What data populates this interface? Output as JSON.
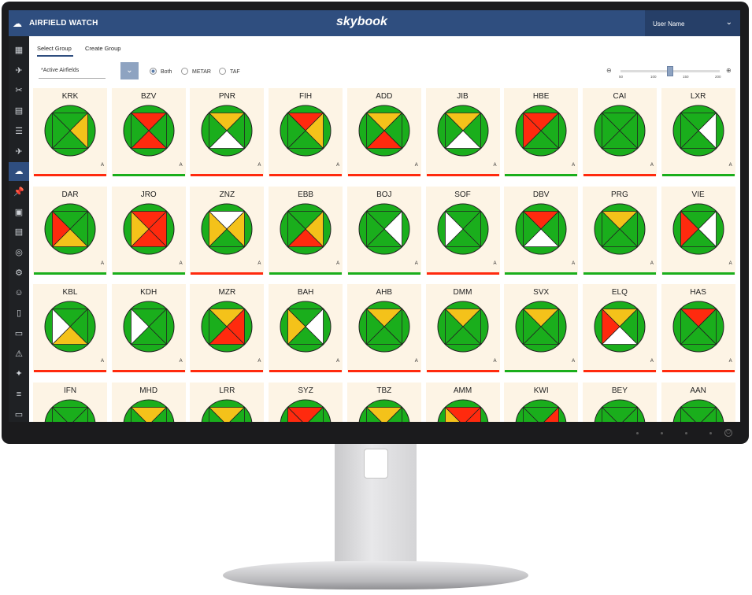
{
  "app": {
    "title": "AIRFIELD WATCH",
    "brand": "skybook",
    "user_name": "User Name"
  },
  "tabs": [
    {
      "label": "Select Group"
    },
    {
      "label": "Create Group"
    }
  ],
  "group_select": {
    "value": "*Active Airfields"
  },
  "report_types": [
    {
      "label": "Both",
      "selected": true
    },
    {
      "label": "METAR",
      "selected": false
    },
    {
      "label": "TAF",
      "selected": false
    }
  ],
  "zoom": {
    "ticks": [
      "50",
      "100",
      "150",
      "200"
    ],
    "value": 155
  },
  "colors": {
    "green": "#1aae1c",
    "red": "#ff2a0e",
    "yellow": "#f4c21a",
    "white": "#ffffff",
    "tile_bg": "#fdf4e5"
  },
  "sidebar_icons": [
    "apps-icon",
    "plane-icon",
    "route-icon",
    "presentation-icon",
    "list-icon",
    "flight-icon",
    "weather-icon",
    "pin-icon",
    "calendar-icon",
    "clipboard-icon",
    "radar-icon",
    "settings-icon",
    "user-icon",
    "document-icon",
    "devices-icon",
    "warning-icon",
    "satellite-icon",
    "sliders-icon",
    "briefcase-icon"
  ],
  "airfields": [
    {
      "code": "KRK",
      "q": [
        "g",
        "y",
        "g",
        "g"
      ],
      "badge": "A",
      "bar": "red"
    },
    {
      "code": "BZV",
      "q": [
        "r",
        "g",
        "r",
        "g"
      ],
      "badge": "A",
      "bar": "green"
    },
    {
      "code": "PNR",
      "q": [
        "y",
        "g",
        "w",
        "g"
      ],
      "badge": "A",
      "bar": "red"
    },
    {
      "code": "FIH",
      "q": [
        "r",
        "y",
        "g",
        "g"
      ],
      "badge": "A",
      "bar": "red"
    },
    {
      "code": "ADD",
      "q": [
        "y",
        "g",
        "r",
        "g"
      ],
      "badge": "A",
      "bar": "red"
    },
    {
      "code": "JIB",
      "q": [
        "y",
        "g",
        "w",
        "g"
      ],
      "badge": "A",
      "bar": "red"
    },
    {
      "code": "HBE",
      "q": [
        "r",
        "g",
        "g",
        "r"
      ],
      "badge": "A",
      "bar": "green"
    },
    {
      "code": "CAI",
      "q": [
        "g",
        "g",
        "g",
        "g"
      ],
      "badge": "A",
      "bar": "red"
    },
    {
      "code": "LXR",
      "q": [
        "g",
        "w",
        "g",
        "g"
      ],
      "badge": "A",
      "bar": "green"
    },
    {
      "code": "DAR",
      "q": [
        "g",
        "g",
        "y",
        "r"
      ],
      "badge": "A",
      "bar": "green"
    },
    {
      "code": "JRO",
      "q": [
        "r",
        "r",
        "r",
        "y"
      ],
      "badge": "A",
      "bar": "green"
    },
    {
      "code": "ZNZ",
      "q": [
        "w",
        "y",
        "g",
        "y"
      ],
      "badge": "A",
      "bar": "red"
    },
    {
      "code": "EBB",
      "q": [
        "g",
        "y",
        "r",
        "g"
      ],
      "badge": "A",
      "bar": "green"
    },
    {
      "code": "BOJ",
      "q": [
        "g",
        "w",
        "g",
        "g"
      ],
      "badge": "A",
      "bar": "green"
    },
    {
      "code": "SOF",
      "q": [
        "g",
        "g",
        "g",
        "w"
      ],
      "badge": "A",
      "bar": "red"
    },
    {
      "code": "DBV",
      "q": [
        "r",
        "g",
        "w",
        "g"
      ],
      "badge": "A",
      "bar": "green"
    },
    {
      "code": "PRG",
      "q": [
        "y",
        "g",
        "g",
        "g"
      ],
      "badge": "A",
      "bar": "green"
    },
    {
      "code": "VIE",
      "q": [
        "g",
        "w",
        "g",
        "r"
      ],
      "badge": "A",
      "bar": "green"
    },
    {
      "code": "KBL",
      "q": [
        "g",
        "g",
        "y",
        "w"
      ],
      "badge": "A",
      "bar": "red"
    },
    {
      "code": "KDH",
      "q": [
        "g",
        "g",
        "g",
        "w"
      ],
      "badge": "A",
      "bar": "red"
    },
    {
      "code": "MZR",
      "q": [
        "y",
        "r",
        "r",
        "g"
      ],
      "badge": "A",
      "bar": "red"
    },
    {
      "code": "BAH",
      "q": [
        "g",
        "w",
        "g",
        "y"
      ],
      "badge": "A",
      "bar": "red"
    },
    {
      "code": "AHB",
      "q": [
        "y",
        "g",
        "g",
        "g"
      ],
      "badge": "A",
      "bar": "red"
    },
    {
      "code": "DMM",
      "q": [
        "y",
        "g",
        "g",
        "g"
      ],
      "badge": "A",
      "bar": "red"
    },
    {
      "code": "SVX",
      "q": [
        "y",
        "g",
        "g",
        "g"
      ],
      "badge": "A",
      "bar": "green"
    },
    {
      "code": "ELQ",
      "q": [
        "y",
        "g",
        "w",
        "r"
      ],
      "badge": "A",
      "bar": "red"
    },
    {
      "code": "HAS",
      "q": [
        "r",
        "g",
        "g",
        "g"
      ],
      "badge": "A",
      "bar": "red"
    },
    {
      "code": "IFN",
      "q": [
        "g",
        "g",
        "g",
        "g"
      ],
      "badge": "",
      "bar": ""
    },
    {
      "code": "MHD",
      "q": [
        "y",
        "g",
        "g",
        "g"
      ],
      "badge": "",
      "bar": ""
    },
    {
      "code": "LRR",
      "q": [
        "y",
        "g",
        "g",
        "g"
      ],
      "badge": "",
      "bar": ""
    },
    {
      "code": "SYZ",
      "q": [
        "r",
        "g",
        "g",
        "r"
      ],
      "badge": "",
      "bar": ""
    },
    {
      "code": "TBZ",
      "q": [
        "y",
        "g",
        "g",
        "g"
      ],
      "badge": "",
      "bar": ""
    },
    {
      "code": "AMM",
      "q": [
        "r",
        "r",
        "g",
        "y"
      ],
      "badge": "",
      "bar": ""
    },
    {
      "code": "KWI",
      "q": [
        "g",
        "r",
        "g",
        "g"
      ],
      "badge": "",
      "bar": ""
    },
    {
      "code": "BEY",
      "q": [
        "g",
        "g",
        "g",
        "g"
      ],
      "badge": "",
      "bar": ""
    },
    {
      "code": "AAN",
      "q": [
        "g",
        "g",
        "g",
        "g"
      ],
      "badge": "",
      "bar": ""
    }
  ]
}
